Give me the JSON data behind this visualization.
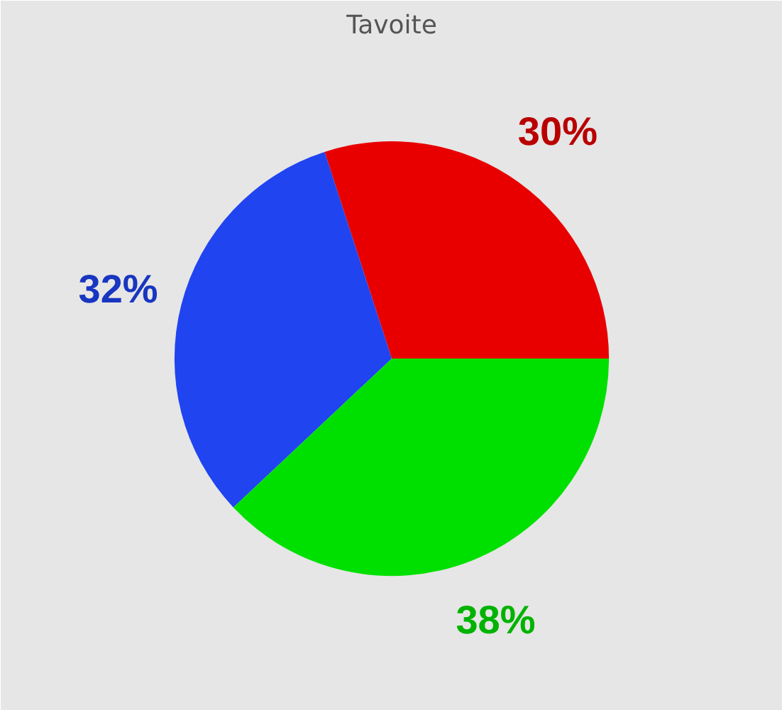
{
  "chart_data": {
    "type": "pie",
    "title": "Tavoite",
    "categories": [
      null,
      null,
      null
    ],
    "values": [
      30,
      32,
      38
    ],
    "colors": [
      "#e80000",
      "#1f44f0",
      "#00e000"
    ],
    "value_labels": [
      "30%",
      "32%",
      "38%"
    ]
  }
}
